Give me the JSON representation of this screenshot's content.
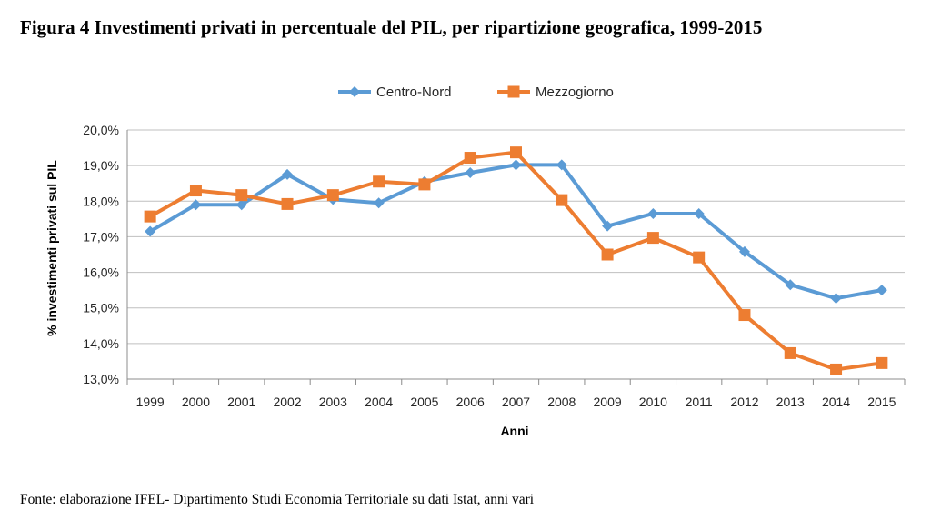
{
  "figure": {
    "title": "Figura 4 Investimenti privati in percentuale del PIL, per ripartizione geografica, 1999-2015",
    "source": "Fonte: elaborazione IFEL- Dipartimento Studi Economia Territoriale su dati Istat, anni vari"
  },
  "chart_data": {
    "type": "line",
    "title": "",
    "xlabel": "Anni",
    "ylabel": "% investimenti privati sul PIL",
    "x": [
      "1999",
      "2000",
      "2001",
      "2002",
      "2003",
      "2004",
      "2005",
      "2006",
      "2007",
      "2008",
      "2009",
      "2010",
      "2011",
      "2012",
      "2013",
      "2014",
      "2015"
    ],
    "ylim": [
      13.0,
      20.0
    ],
    "yticks": [
      "13,0%",
      "14,0%",
      "15,0%",
      "16,0%",
      "17,0%",
      "18,0%",
      "19,0%",
      "20,0%"
    ],
    "grid": true,
    "legend_position": "top-center",
    "series": [
      {
        "name": "Centro-Nord",
        "color": "#5b9bd5",
        "marker": "diamond",
        "values": [
          17.15,
          17.9,
          17.9,
          18.75,
          18.05,
          17.95,
          18.55,
          18.8,
          19.02,
          19.02,
          17.3,
          17.65,
          17.65,
          16.58,
          15.65,
          15.27,
          15.5
        ]
      },
      {
        "name": "Mezzogiorno",
        "color": "#ed7d31",
        "marker": "square",
        "values": [
          17.57,
          18.3,
          18.17,
          17.92,
          18.17,
          18.55,
          18.47,
          19.22,
          19.37,
          18.03,
          16.5,
          16.97,
          16.42,
          14.8,
          13.73,
          13.27,
          13.45
        ]
      }
    ]
  }
}
